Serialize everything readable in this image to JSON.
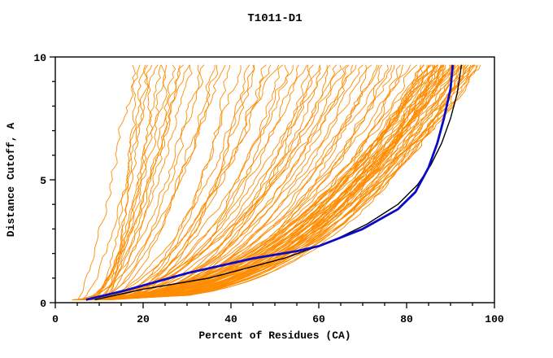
{
  "chart_data": {
    "type": "line",
    "title": "T1011-D1",
    "xlabel": "Percent of Residues (CA)",
    "ylabel": "Distance Cutoff, A",
    "xlim": [
      0,
      100
    ],
    "ylim": [
      0,
      10
    ],
    "x_ticks": [
      0,
      20,
      40,
      60,
      80,
      100
    ],
    "y_ticks": [
      0,
      5,
      10
    ],
    "x_minor_step": 5,
    "y_minor_step": 1,
    "grid": false,
    "legend": "none",
    "background": "#ffffff",
    "axis_color": "#000000",
    "curve_y_start": 0.12,
    "curve_y_top": 9.68,
    "ensemble": {
      "name": "predicted-models",
      "color": "#ff8c00",
      "width": 0.9,
      "seed": 7,
      "wiggle": 1.3,
      "curves": [
        [
          5,
          97,
          0.4
        ],
        [
          6,
          96,
          0.38
        ],
        [
          7,
          95,
          0.42
        ],
        [
          8,
          94,
          0.36
        ],
        [
          9,
          93,
          0.44
        ],
        [
          10,
          92,
          0.4
        ],
        [
          5,
          92,
          0.35
        ],
        [
          6,
          91,
          0.45
        ],
        [
          7,
          90,
          0.38
        ],
        [
          8,
          90,
          0.42
        ],
        [
          9,
          89,
          0.36
        ],
        [
          10,
          89,
          0.44
        ],
        [
          11,
          88,
          0.4
        ],
        [
          4,
          88,
          0.34
        ],
        [
          5,
          87,
          0.46
        ],
        [
          6,
          87,
          0.39
        ],
        [
          7,
          86,
          0.43
        ],
        [
          8,
          86,
          0.37
        ],
        [
          9,
          85,
          0.41
        ],
        [
          10,
          85,
          0.45
        ],
        [
          11,
          84,
          0.35
        ],
        [
          12,
          84,
          0.42
        ],
        [
          5,
          93,
          0.48
        ],
        [
          6,
          94,
          0.33
        ],
        [
          7,
          92,
          0.47
        ],
        [
          8,
          91,
          0.35
        ],
        [
          9,
          90,
          0.49
        ],
        [
          10,
          88,
          0.37
        ],
        [
          4,
          86,
          0.44
        ],
        [
          5,
          85,
          0.39
        ],
        [
          6,
          89,
          0.5
        ],
        [
          7,
          87,
          0.34
        ],
        [
          8,
          95,
          0.46
        ],
        [
          9,
          96,
          0.38
        ],
        [
          10,
          94,
          0.43
        ],
        [
          11,
          93,
          0.36
        ],
        [
          12,
          91,
          0.48
        ],
        [
          4,
          90,
          0.41
        ],
        [
          5,
          89,
          0.37
        ],
        [
          6,
          88,
          0.45
        ],
        [
          7,
          85,
          0.4
        ],
        [
          8,
          84,
          0.47
        ],
        [
          9,
          87,
          0.33
        ],
        [
          10,
          86,
          0.49
        ],
        [
          11,
          90,
          0.42
        ],
        [
          12,
          92,
          0.38
        ],
        [
          13,
          88,
          0.44
        ],
        [
          4,
          94,
          0.36
        ],
        [
          5,
          96,
          0.42
        ],
        [
          6,
          95,
          0.39
        ],
        [
          5,
          82,
          0.4
        ],
        [
          6,
          80,
          0.36
        ],
        [
          7,
          78,
          0.44
        ],
        [
          8,
          76,
          0.38
        ],
        [
          9,
          74,
          0.46
        ],
        [
          10,
          72,
          0.34
        ],
        [
          11,
          70,
          0.42
        ],
        [
          12,
          68,
          0.48
        ],
        [
          4,
          66,
          0.37
        ],
        [
          5,
          64,
          0.45
        ],
        [
          6,
          62,
          0.39
        ],
        [
          7,
          60,
          0.47
        ],
        [
          8,
          58,
          0.35
        ],
        [
          9,
          56,
          0.43
        ],
        [
          10,
          81,
          0.5
        ],
        [
          11,
          79,
          0.33
        ],
        [
          12,
          77,
          0.41
        ],
        [
          13,
          75,
          0.49
        ],
        [
          4,
          73,
          0.36
        ],
        [
          5,
          71,
          0.44
        ],
        [
          6,
          69,
          0.52
        ],
        [
          7,
          67,
          0.38
        ],
        [
          8,
          65,
          0.46
        ],
        [
          9,
          63,
          0.4
        ],
        [
          10,
          61,
          0.48
        ],
        [
          11,
          59,
          0.35
        ],
        [
          12,
          57,
          0.55
        ],
        [
          13,
          83,
          0.37
        ],
        [
          5,
          54,
          0.45
        ],
        [
          6,
          52,
          0.38
        ],
        [
          7,
          50,
          0.5
        ],
        [
          8,
          48,
          0.42
        ],
        [
          9,
          46,
          0.55
        ],
        [
          10,
          44,
          0.36
        ],
        [
          11,
          42,
          0.48
        ],
        [
          12,
          40,
          0.4
        ],
        [
          5,
          38,
          0.52
        ],
        [
          6,
          36,
          0.44
        ],
        [
          7,
          34,
          0.58
        ],
        [
          8,
          33,
          0.47
        ],
        [
          9,
          53,
          0.39
        ],
        [
          10,
          49,
          0.53
        ],
        [
          11,
          45,
          0.43
        ],
        [
          12,
          37,
          0.6
        ],
        [
          6,
          31,
          0.55
        ],
        [
          7,
          29,
          0.62
        ],
        [
          8,
          27,
          0.5
        ],
        [
          9,
          25,
          0.68
        ],
        [
          10,
          23,
          0.58
        ],
        [
          11,
          21,
          0.72
        ],
        [
          12,
          19,
          0.6
        ],
        [
          5,
          18,
          0.75
        ],
        [
          6,
          22,
          0.65
        ],
        [
          7,
          26,
          0.55
        ],
        [
          8,
          30,
          0.7
        ],
        [
          9,
          20,
          0.62
        ],
        [
          10,
          28,
          0.52
        ],
        [
          11,
          24,
          0.66
        ]
      ]
    },
    "series": [
      {
        "name": "highlight-black-model",
        "color": "#000000",
        "width": 1.4,
        "points": [
          [
            9,
            0.12
          ],
          [
            20,
            0.55
          ],
          [
            35,
            1.0
          ],
          [
            52,
            1.8
          ],
          [
            63,
            2.5
          ],
          [
            71,
            3.2
          ],
          [
            78,
            4.0
          ],
          [
            82.5,
            4.8
          ],
          [
            85.5,
            5.6
          ],
          [
            88,
            6.5
          ],
          [
            90,
            7.5
          ],
          [
            91.5,
            8.5
          ],
          [
            92.5,
            9.68
          ]
        ]
      },
      {
        "name": "highlight-blue-model",
        "color": "#0a0ac8",
        "width": 2.8,
        "points": [
          [
            7,
            0.12
          ],
          [
            16,
            0.5
          ],
          [
            30,
            1.2
          ],
          [
            45,
            1.8
          ],
          [
            55,
            2.1
          ],
          [
            60,
            2.3
          ],
          [
            70,
            3.0
          ],
          [
            78,
            3.8
          ],
          [
            82,
            4.5
          ],
          [
            85,
            5.5
          ],
          [
            87,
            6.5
          ],
          [
            88.5,
            7.5
          ],
          [
            90,
            8.7
          ],
          [
            90.5,
            9.68
          ]
        ]
      }
    ]
  }
}
